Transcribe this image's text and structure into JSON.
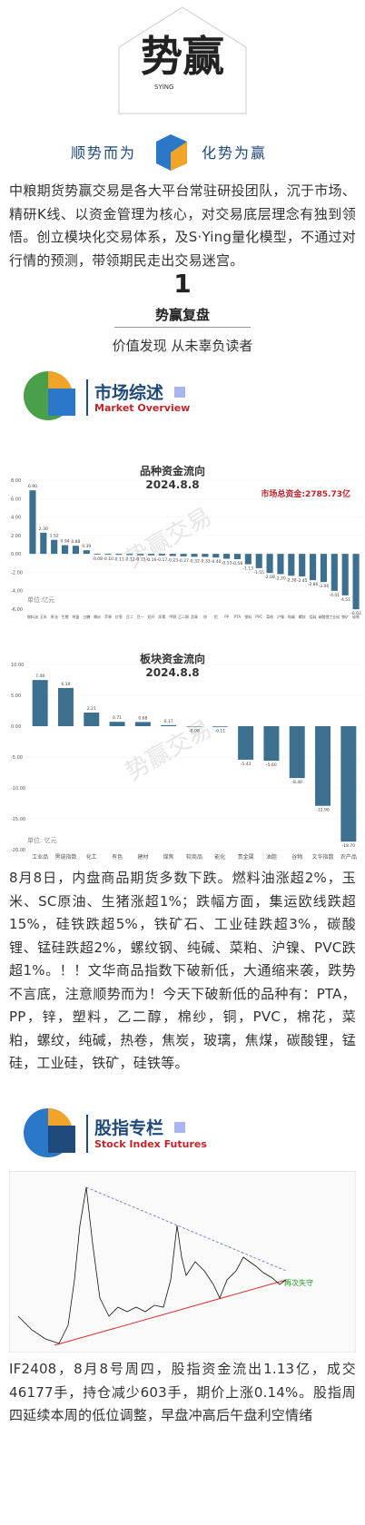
{
  "header": {
    "logo_text": "SYING",
    "slogan_left": "顺势而为",
    "slogan_right": "化势为赢"
  },
  "intro": "中粮期货势赢交易是各大平台常驻研投团队，沉于市场、精研K线、以资金管理为核心，对交易底层理念有独到领悟。创立模块化交易体系，及S·Ying量化模型，不通过对行情的预测，带领期民走出交易迷宫。",
  "section_number": "1",
  "section_title": "势赢复盘",
  "section_subtitle": "价值发现 从未辜负读者",
  "market": {
    "title": "市场综述",
    "subtitle": "Market Overview"
  },
  "chart_data": [
    {
      "type": "bar",
      "title": "品种资金流向",
      "subtitle": "2024.8.8",
      "annotation": "市场总资金:2785.73亿",
      "unit": "单位:亿元",
      "watermark": "势赢交易",
      "color": "#3d6f8e",
      "categories": [
        "燃料油",
        "玉米",
        "原油",
        "生猪",
        "鸡蛋",
        "白糖",
        "棉纱",
        "苹果",
        "红枣",
        "豆二",
        "豆一",
        "短纤",
        "尿素",
        "甲醇",
        "乙二醇",
        "沥青",
        "锌",
        "铝",
        "PP",
        "PTA",
        "塑料",
        "PVC",
        "菜粕",
        "沪镍",
        "纯碱",
        "螺纹",
        "锰硅",
        "碳酸锂",
        "工业硅",
        "铁矿",
        "硅铁"
      ],
      "values": [
        6.9,
        2.3,
        1.52,
        0.94,
        0.88,
        0.39,
        -0.08,
        -0.1,
        -0.11,
        -0.12,
        -0.15,
        -0.16,
        -0.17,
        -0.23,
        -0.27,
        -0.32,
        -0.33,
        -0.4,
        -0.53,
        -0.58,
        -1.13,
        -1.55,
        -2.08,
        -2.2,
        -2.38,
        -2.45,
        -2.86,
        -3.06,
        -4.01,
        -4.51,
        -6.02
      ],
      "value_labels": [
        "6.90",
        "2.30",
        "1.52",
        "0.94",
        "0.88",
        "0.39",
        "-0.08",
        "-0.10",
        "-0.11",
        "-0.12",
        "-0.15",
        "-0.16",
        "-0.17",
        "-0.23",
        "-0.27",
        "-0.32",
        "-0.33",
        "-0.40",
        "-0.53",
        "-0.58",
        "-1.13",
        "-1.55",
        "-2.08",
        "-2.20",
        "-2.38",
        "-2.45",
        "-2.86",
        "-3.06",
        "-4.01",
        "-4.51",
        "-6.02"
      ],
      "ylim": [
        -6,
        8
      ],
      "yticks": [
        {
          "value": 8,
          "label": "8.00"
        },
        {
          "value": 6,
          "label": "6.00"
        },
        {
          "value": 4,
          "label": "4.00"
        },
        {
          "value": 2,
          "label": "2.00"
        },
        {
          "value": 0,
          "label": "0.00"
        },
        {
          "value": -2,
          "label": "-2.00"
        },
        {
          "value": -4,
          "label": "-4.00"
        },
        {
          "value": -6,
          "label": "-6.00"
        }
      ]
    },
    {
      "type": "bar",
      "title": "板块资金流向",
      "subtitle": "2024.8.8",
      "unit": "单位: 亿元",
      "watermark": "势赢交易",
      "color": "#3d6f8e",
      "categories": [
        "工业品",
        "黑链指数",
        "化工",
        "有色",
        "建材",
        "煤焦",
        "软商品",
        "能化",
        "贵金属",
        "油脂",
        "谷物",
        "文华指数",
        "农产品"
      ],
      "values": [
        7.48,
        6.19,
        2.21,
        0.71,
        0.68,
        0.17,
        -0.08,
        -0.11,
        -5.43,
        -5.6,
        -8.4,
        -12.9,
        -18.7
      ],
      "value_labels": [
        "7.48",
        "6.19",
        "2.21",
        "0.71",
        "0.68",
        "0.17",
        "-0.08",
        "-0.11",
        "-5.43",
        "-5.60",
        "-8.40",
        "-12.90",
        "-18.70"
      ],
      "ylim": [
        -20,
        10
      ],
      "yticks": [
        {
          "value": 10,
          "label": "10.00"
        },
        {
          "value": 5,
          "label": "5.00"
        },
        {
          "value": 0,
          "label": "0.00"
        },
        {
          "value": -5,
          "label": "-5.00"
        },
        {
          "value": -10,
          "label": "-10.00"
        },
        {
          "value": -15,
          "label": "-15.00"
        },
        {
          "value": -20,
          "label": "-20.00"
        }
      ]
    }
  ],
  "market_text": "8月8日，内盘商品期货多数下跌。燃料油涨超2%，玉米、SC原油、生猪涨超1%；跌幅方面，集运欧线跌超15%，硅铁跌超5%，铁矿石、工业硅跌超3%，碳酸锂、锰硅跌超2%，螺纹钢、纯碱、菜粕、沪镍、PVC跌超1%。！！文华商品指数下破新低，大通缩来袭，跌势不言底，注意顺势而为！今天下破新低的品种有：PTA，PP，锌，塑料，乙二醇，棉纱，铜，PVC，棉花，菜粕，螺纹，纯碱，热卷，焦炭，玻璃，焦煤，碳酸锂，锰硅，工业硅，铁矿，硅铁等。",
  "index": {
    "title": "股指专栏",
    "subtitle": "Stock Index Futures",
    "annotation": "再次失守"
  },
  "index_text": "IF2408，8月8号周四，股指资金流出1.13亿，成交46177手，持仓减少603手，期价上涨0.14%。股指周四延续本周的低位调整，早盘冲高后午盘利空情绪"
}
